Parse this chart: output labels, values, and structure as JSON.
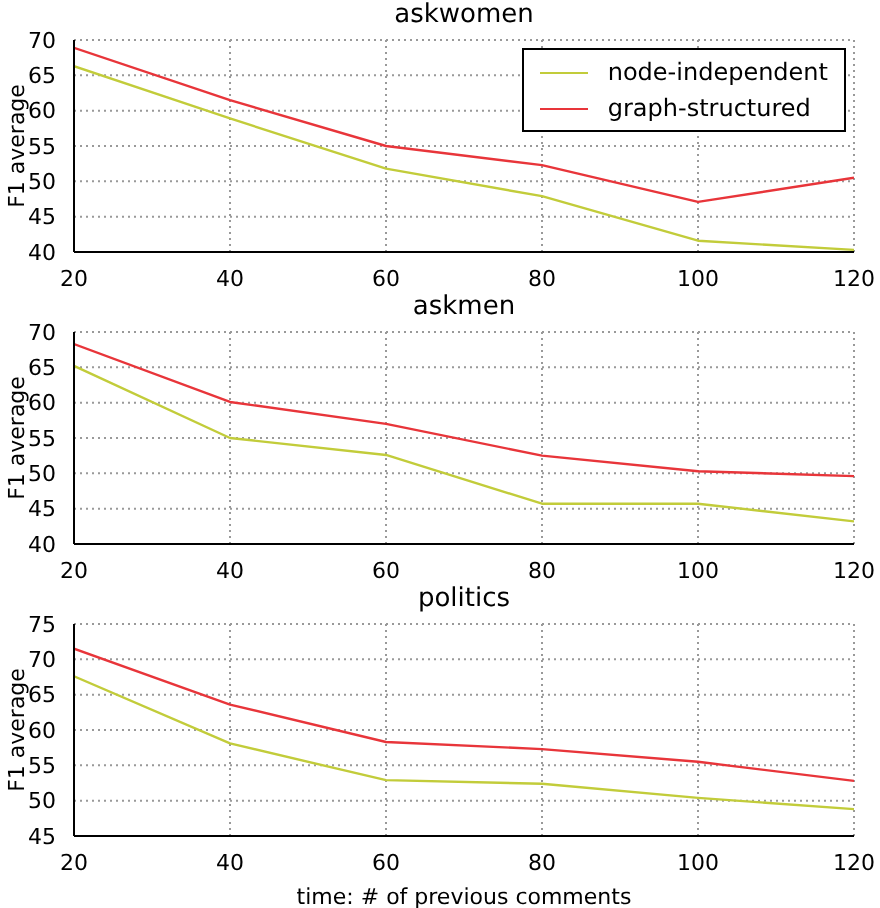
{
  "chart_data": [
    {
      "type": "line",
      "title": "askwomen",
      "ylabel": "F1 average",
      "x": [
        20,
        40,
        60,
        80,
        100,
        120
      ],
      "xlim": [
        20,
        120
      ],
      "xticks": [
        20,
        40,
        60,
        80,
        100,
        120
      ],
      "ylim": [
        40,
        70
      ],
      "yticks": [
        40,
        45,
        50,
        55,
        60,
        65,
        70
      ],
      "grid": true,
      "legend": "top right",
      "marker": "none",
      "line_style": "solid",
      "series": [
        {
          "name": "node-independent",
          "color": "#c2cc3a",
          "values": [
            66.3,
            58.9,
            51.8,
            47.9,
            41.6,
            40.3
          ]
        },
        {
          "name": "graph-structured",
          "color": "#e8353a",
          "values": [
            68.9,
            61.5,
            55.0,
            52.3,
            47.1,
            50.5
          ]
        }
      ]
    },
    {
      "type": "line",
      "title": "askmen",
      "ylabel": "F1 average",
      "x": [
        20,
        40,
        60,
        80,
        100,
        120
      ],
      "xlim": [
        20,
        120
      ],
      "xticks": [
        20,
        40,
        60,
        80,
        100,
        120
      ],
      "ylim": [
        40,
        70
      ],
      "yticks": [
        40,
        45,
        50,
        55,
        60,
        65,
        70
      ],
      "grid": true,
      "marker": "none",
      "line_style": "solid",
      "series": [
        {
          "color": "#c2cc3a",
          "values": [
            65.2,
            55.0,
            52.6,
            45.7,
            45.7,
            43.2
          ]
        },
        {
          "color": "#e8353a",
          "values": [
            68.3,
            60.1,
            57.0,
            52.5,
            50.3,
            49.6
          ]
        }
      ]
    },
    {
      "type": "line",
      "title": "politics",
      "xlabel": "time: # of previous comments",
      "ylabel": "F1 average",
      "x": [
        20,
        40,
        60,
        80,
        100,
        120
      ],
      "xlim": [
        20,
        120
      ],
      "xticks": [
        20,
        40,
        60,
        80,
        100,
        120
      ],
      "ylim": [
        45,
        75
      ],
      "yticks": [
        45,
        50,
        55,
        60,
        65,
        70,
        75
      ],
      "grid": true,
      "marker": "none",
      "line_style": "solid",
      "series": [
        {
          "color": "#c2cc3a",
          "values": [
            67.6,
            58.1,
            52.9,
            52.4,
            50.4,
            48.8
          ]
        },
        {
          "color": "#e8353a",
          "values": [
            71.5,
            63.6,
            58.3,
            57.3,
            55.5,
            52.8
          ]
        }
      ]
    }
  ]
}
